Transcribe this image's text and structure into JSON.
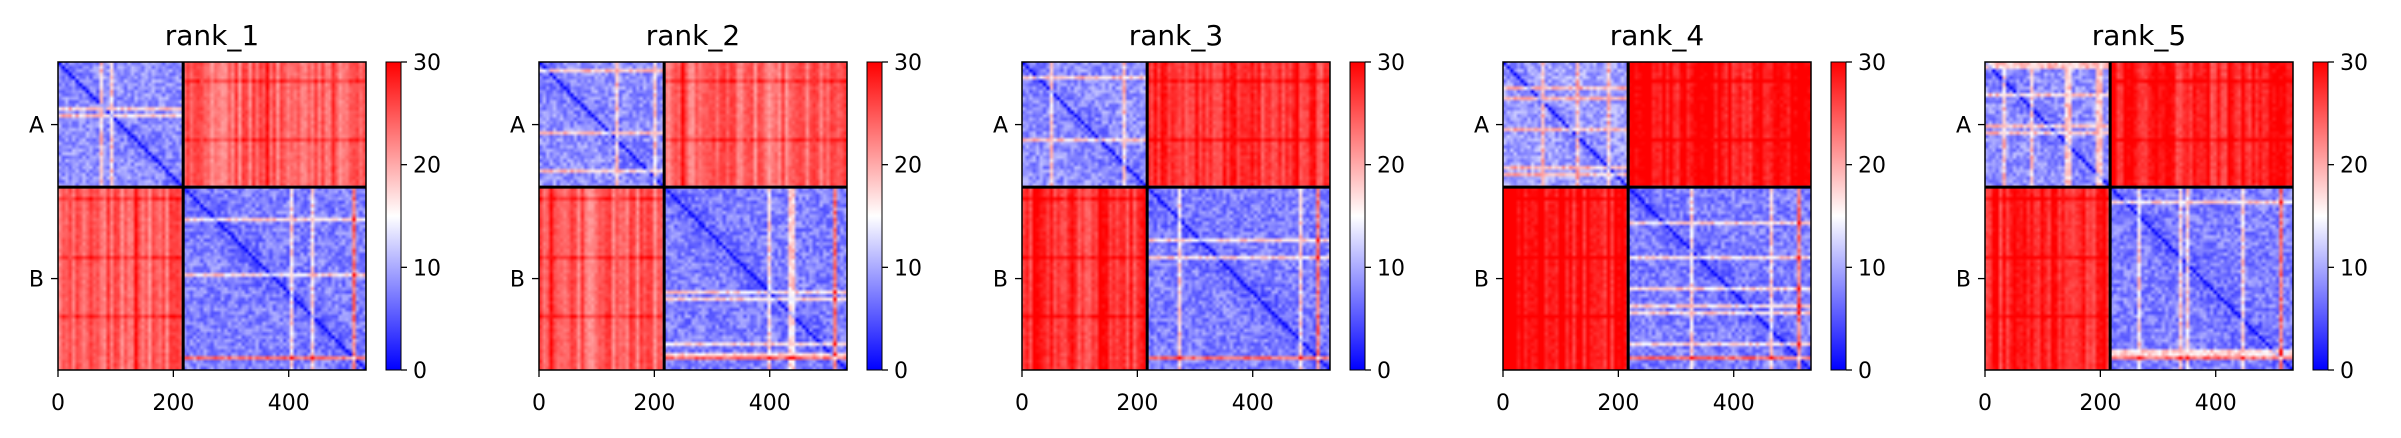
{
  "chart_data": [
    {
      "type": "heatmap",
      "title": "rank_1",
      "xlim": [
        0,
        534
      ],
      "x_ticks": [
        0,
        200,
        400
      ],
      "y_tick_labels": [
        "A",
        "B"
      ],
      "chain_boundary": 217,
      "length": 534,
      "colormap": "bwr",
      "colorbar_ticks": [
        0,
        10,
        20,
        30
      ],
      "vmin": 0,
      "vmax": 30,
      "mean_interchain_pae": 24,
      "intrachain_A_pae": 7,
      "intrachain_B_pae": 6
    },
    {
      "type": "heatmap",
      "title": "rank_2",
      "xlim": [
        0,
        534
      ],
      "x_ticks": [
        0,
        200,
        400
      ],
      "y_tick_labels": [
        "A",
        "B"
      ],
      "chain_boundary": 217,
      "length": 534,
      "colormap": "bwr",
      "colorbar_ticks": [
        0,
        10,
        20,
        30
      ],
      "vmin": 0,
      "vmax": 30,
      "mean_interchain_pae": 24,
      "intrachain_A_pae": 7,
      "intrachain_B_pae": 6
    },
    {
      "type": "heatmap",
      "title": "rank_3",
      "xlim": [
        0,
        534
      ],
      "x_ticks": [
        0,
        200,
        400
      ],
      "y_tick_labels": [
        "A",
        "B"
      ],
      "chain_boundary": 217,
      "length": 534,
      "colormap": "bwr",
      "colorbar_ticks": [
        0,
        10,
        20,
        30
      ],
      "vmin": 0,
      "vmax": 30,
      "mean_interchain_pae": 27,
      "intrachain_A_pae": 7,
      "intrachain_B_pae": 6
    },
    {
      "type": "heatmap",
      "title": "rank_4",
      "xlim": [
        0,
        534
      ],
      "x_ticks": [
        0,
        200,
        400
      ],
      "y_tick_labels": [
        "A",
        "B"
      ],
      "chain_boundary": 217,
      "length": 534,
      "colormap": "bwr",
      "colorbar_ticks": [
        0,
        10,
        20,
        30
      ],
      "vmin": 0,
      "vmax": 30,
      "mean_interchain_pae": 29,
      "intrachain_A_pae": 8,
      "intrachain_B_pae": 6
    },
    {
      "type": "heatmap",
      "title": "rank_5",
      "xlim": [
        0,
        534
      ],
      "x_ticks": [
        0,
        200,
        400
      ],
      "y_tick_labels": [
        "A",
        "B"
      ],
      "chain_boundary": 217,
      "length": 534,
      "colormap": "bwr",
      "colorbar_ticks": [
        0,
        10,
        20,
        30
      ],
      "vmin": 0,
      "vmax": 30,
      "mean_interchain_pae": 28,
      "intrachain_A_pae": 7,
      "intrachain_B_pae": 6
    }
  ]
}
